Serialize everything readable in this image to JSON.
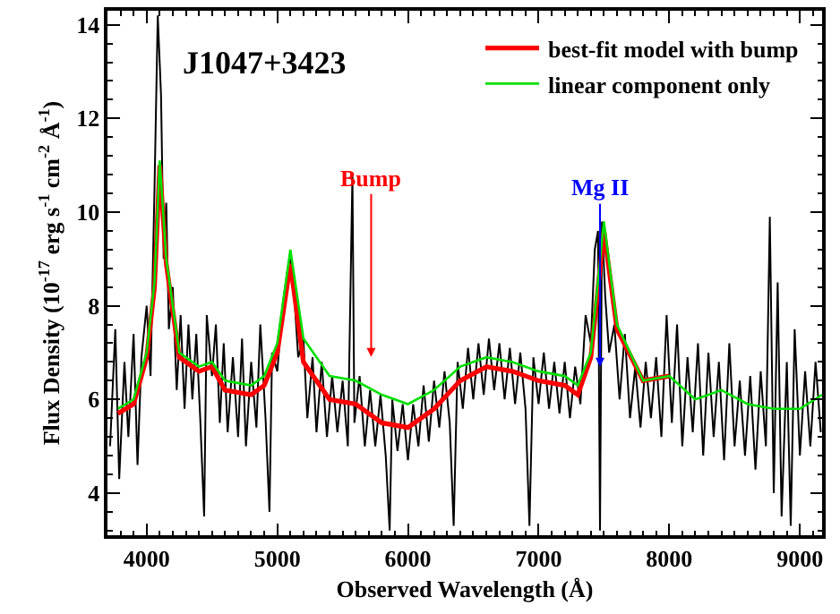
{
  "chart_data": {
    "type": "line",
    "xlabel": "Observed Wavelength (Å)",
    "ylabel": "Flux Density (10$^{-17}$ erg s$^{-1}$ cm$^{-2}$ Å$^{-1}$)",
    "xlim": [
      3700,
      9170
    ],
    "ylim": [
      3.1,
      14.3
    ],
    "xticks": [
      4000,
      5000,
      6000,
      7000,
      8000,
      9000
    ],
    "yticks": [
      4,
      6,
      8,
      10,
      12,
      14
    ],
    "grid": false,
    "legend": "top right",
    "marker": "none",
    "line_style": "solid",
    "annotations": [
      "J1047+3423",
      "Bump",
      {
        "text": "Mg II",
        "x": 7470,
        "y": 6.7
      }
    ],
    "series": [
      {
        "color": "#000000",
        "x": [
          3720,
          3760,
          3790,
          3830,
          3860,
          3900,
          3930,
          3960,
          4000,
          4030,
          4060,
          4085,
          4110,
          4130,
          4150,
          4170,
          4200,
          4230,
          4260,
          4290,
          4320,
          4350,
          4380,
          4410,
          4440,
          4460,
          4500,
          4530,
          4560,
          4590,
          4620,
          4660,
          4700,
          4730,
          4760,
          4800,
          4840,
          4870,
          4910,
          4940,
          4960,
          5000,
          5040,
          5080,
          5100,
          5130,
          5160,
          5200,
          5230,
          5270,
          5300,
          5340,
          5380,
          5420,
          5460,
          5500,
          5540,
          5575,
          5590,
          5630,
          5670,
          5710,
          5750,
          5790,
          5830,
          5860,
          5880,
          5920,
          5960,
          6000,
          6040,
          6080,
          6120,
          6160,
          6200,
          6240,
          6280,
          6320,
          6350,
          6380,
          6420,
          6460,
          6500,
          6540,
          6580,
          6620,
          6660,
          6700,
          6740,
          6780,
          6820,
          6860,
          6900,
          6930,
          6960,
          7000,
          7040,
          7080,
          7120,
          7160,
          7200,
          7240,
          7280,
          7320,
          7360,
          7400,
          7430,
          7455,
          7470,
          7485,
          7510,
          7540,
          7580,
          7620,
          7660,
          7700,
          7740,
          7780,
          7820,
          7860,
          7900,
          7940,
          7980,
          8020,
          8060,
          8100,
          8140,
          8180,
          8220,
          8260,
          8300,
          8340,
          8380,
          8420,
          8460,
          8500,
          8540,
          8580,
          8620,
          8660,
          8700,
          8740,
          8770,
          8800,
          8830,
          8860,
          8900,
          8930,
          8960,
          9000,
          9040,
          9080,
          9120,
          9160
        ],
        "values": [
          5.0,
          7.5,
          4.3,
          6.8,
          5.2,
          7.4,
          4.6,
          6.9,
          8.0,
          6.5,
          10.5,
          14.2,
          12.5,
          9.0,
          10.2,
          7.5,
          8.4,
          6.2,
          7.8,
          5.8,
          7.6,
          6.0,
          7.4,
          5.6,
          3.5,
          7.8,
          6.5,
          7.6,
          5.5,
          7.2,
          5.3,
          6.9,
          5.2,
          7.3,
          5.0,
          6.8,
          5.4,
          7.6,
          5.6,
          3.6,
          7.0,
          6.6,
          8.0,
          8.8,
          9.0,
          8.2,
          6.9,
          7.3,
          5.6,
          6.9,
          5.3,
          6.8,
          5.2,
          6.5,
          5.3,
          6.4,
          5.0,
          10.8,
          5.5,
          6.5,
          5.0,
          6.2,
          5.0,
          6.1,
          4.8,
          3.2,
          6.0,
          4.9,
          5.9,
          4.7,
          5.9,
          5.0,
          6.3,
          5.1,
          6.4,
          5.4,
          6.6,
          5.5,
          3.3,
          6.8,
          5.8,
          7.1,
          6.0,
          7.2,
          6.1,
          7.3,
          6.2,
          7.2,
          6.0,
          7.1,
          5.9,
          7.0,
          5.8,
          3.3,
          6.9,
          5.9,
          7.0,
          5.8,
          6.8,
          5.7,
          6.8,
          5.6,
          6.7,
          5.9,
          7.8,
          7.2,
          9.2,
          9.6,
          3.2,
          9.8,
          8.2,
          7.0,
          7.6,
          6.0,
          7.4,
          5.6,
          6.7,
          5.4,
          6.8,
          5.6,
          6.9,
          5.2,
          7.8,
          5.5,
          7.6,
          5.0,
          6.9,
          5.3,
          7.2,
          4.8,
          7.0,
          5.2,
          6.8,
          4.7,
          7.2,
          5.0,
          6.4,
          4.8,
          6.5,
          4.5,
          6.6,
          5.0,
          9.9,
          4.0,
          8.5,
          3.5,
          6.8,
          3.3,
          7.5,
          4.8,
          6.6,
          5.0,
          6.8,
          5.3
        ]
      },
      {
        "name": "best-fit model with bump",
        "color": "#ff0000",
        "x": [
          3780,
          3900,
          4000,
          4060,
          4100,
          4150,
          4250,
          4400,
          4500,
          4600,
          4800,
          4900,
          5000,
          5100,
          5200,
          5400,
          5600,
          5800,
          6000,
          6200,
          6400,
          6600,
          6800,
          7000,
          7200,
          7300,
          7400,
          7500,
          7600,
          7800,
          8000
        ],
        "values": [
          5.7,
          5.9,
          6.9,
          8.4,
          11.0,
          8.9,
          6.9,
          6.6,
          6.7,
          6.2,
          6.1,
          6.3,
          7.0,
          8.9,
          6.8,
          6.0,
          5.9,
          5.5,
          5.4,
          5.8,
          6.4,
          6.7,
          6.6,
          6.4,
          6.3,
          6.1,
          6.9,
          9.6,
          7.5,
          6.4,
          6.5
        ]
      },
      {
        "name": "linear component only",
        "color": "#00e000",
        "x": [
          3780,
          3900,
          4000,
          4060,
          4100,
          4150,
          4250,
          4400,
          4500,
          4600,
          4800,
          4900,
          5000,
          5100,
          5200,
          5400,
          5600,
          5800,
          6000,
          6200,
          6400,
          6600,
          6800,
          7000,
          7200,
          7300,
          7400,
          7500,
          7600,
          7800,
          8000,
          8200,
          8400,
          8600,
          8800,
          9000,
          9170
        ],
        "values": [
          5.8,
          6.0,
          7.0,
          8.5,
          11.1,
          9.0,
          7.0,
          6.7,
          6.8,
          6.4,
          6.3,
          6.5,
          7.2,
          9.2,
          7.3,
          6.5,
          6.4,
          6.1,
          5.9,
          6.2,
          6.7,
          6.9,
          6.8,
          6.6,
          6.5,
          6.3,
          7.0,
          9.8,
          7.6,
          6.4,
          6.5,
          6.0,
          6.2,
          5.9,
          5.8,
          5.8,
          6.1
        ]
      }
    ]
  }
}
